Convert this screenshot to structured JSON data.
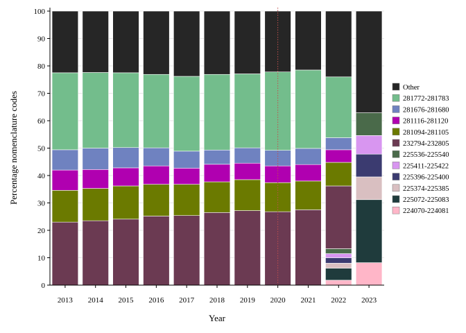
{
  "chart_data": {
    "type": "bar",
    "stacked": true,
    "title": "",
    "xlabel": "Year",
    "ylabel": "Percentage nomenclature codes",
    "ylim": [
      0,
      100
    ],
    "yticks": [
      0,
      10,
      20,
      30,
      40,
      50,
      60,
      70,
      80,
      90,
      100
    ],
    "grid": true,
    "legend_position": "right",
    "categories": [
      "2013",
      "2014",
      "2015",
      "2016",
      "2017",
      "2018",
      "2019",
      "2020",
      "2021",
      "2022",
      "2023"
    ],
    "reference_line": {
      "x": "2020",
      "style": "dotted",
      "color": "#c0504d"
    },
    "series": [
      {
        "name": "224070-224081",
        "color": "#ffb6c8",
        "values": [
          0,
          0,
          0,
          0,
          0,
          0,
          0,
          0,
          0,
          1.8,
          8.2
        ]
      },
      {
        "name": "225072-225083",
        "color": "#1f3b3c",
        "values": [
          0,
          0,
          0,
          0,
          0,
          0,
          0,
          0,
          0,
          4.4,
          23.0
        ]
      },
      {
        "name": "225374-225385",
        "color": "#d9bfc1",
        "values": [
          0,
          0,
          0,
          0,
          0,
          0,
          0,
          0,
          0,
          1.8,
          8.3
        ]
      },
      {
        "name": "225396-225400",
        "color": "#3b3b70",
        "values": [
          0,
          0,
          0,
          0,
          0,
          0,
          0,
          0,
          0,
          2.0,
          8.3
        ]
      },
      {
        "name": "225411-225422",
        "color": "#d896f0",
        "values": [
          0,
          0,
          0,
          0,
          0,
          0,
          0,
          0,
          0,
          1.5,
          6.8
        ]
      },
      {
        "name": "225536-225540",
        "color": "#4a6a4a",
        "values": [
          0,
          0,
          0,
          0,
          0,
          0,
          0,
          0,
          0,
          1.8,
          8.3
        ]
      },
      {
        "name": "232794-232805",
        "color": "#6b3a52",
        "values": [
          23.0,
          23.5,
          24.1,
          25.2,
          25.4,
          26.5,
          27.2,
          26.8,
          27.5,
          22.9,
          0
        ]
      },
      {
        "name": "281094-281105",
        "color": "#6b7a00",
        "values": [
          11.6,
          11.8,
          12.1,
          11.6,
          11.4,
          11.2,
          11.3,
          10.6,
          10.5,
          8.6,
          0
        ]
      },
      {
        "name": "281116-281120",
        "color": "#b000b0",
        "values": [
          7.4,
          6.9,
          6.6,
          6.7,
          5.9,
          6.4,
          6.0,
          6.1,
          6.0,
          4.6,
          0
        ]
      },
      {
        "name": "281676-281680",
        "color": "#6f82c0",
        "values": [
          7.4,
          7.8,
          7.4,
          6.6,
          6.2,
          5.2,
          5.6,
          5.7,
          5.9,
          4.4,
          0
        ]
      },
      {
        "name": "281772-281783",
        "color": "#73bd8c",
        "values": [
          28.1,
          27.6,
          27.3,
          26.8,
          27.3,
          27.6,
          27.0,
          28.6,
          28.6,
          22.2,
          0
        ]
      },
      {
        "name": "Other",
        "color": "#262626",
        "values": [
          22.5,
          22.4,
          22.5,
          23.1,
          23.8,
          23.1,
          22.9,
          22.2,
          21.5,
          24.0,
          37.1
        ]
      }
    ],
    "legend_order": [
      "Other",
      "281772-281783",
      "281676-281680",
      "281116-281120",
      "281094-281105",
      "232794-232805",
      "225536-225540",
      "225411-225422",
      "225396-225400",
      "225374-225385",
      "225072-225083",
      "224070-224081"
    ]
  }
}
